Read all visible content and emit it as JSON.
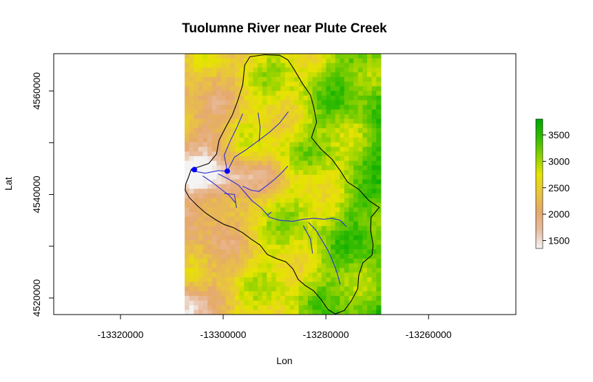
{
  "title": "Tuolumne River near Plute Creek",
  "x_axis": {
    "label": "Lon",
    "range": [
      -13333000,
      -13243000
    ],
    "ticks": [
      {
        "value": -13320000,
        "label": "-13320000"
      },
      {
        "value": -13300000,
        "label": "-13300000"
      },
      {
        "value": -13280000,
        "label": "-13280000"
      },
      {
        "value": -13260000,
        "label": "-13260000"
      }
    ]
  },
  "y_axis": {
    "label": "Lat",
    "range": [
      4516800,
      4567200
    ],
    "ticks": [
      {
        "value": 4520000,
        "label": "4520000",
        "labeled": true
      },
      {
        "value": 4530000,
        "label": "",
        "labeled": false
      },
      {
        "value": 4540000,
        "label": "4540000",
        "labeled": true
      },
      {
        "value": 4550000,
        "label": "",
        "labeled": false
      },
      {
        "value": 4560000,
        "label": "4560000",
        "labeled": true
      }
    ]
  },
  "raster": {
    "lon_range": [
      -13307500,
      -13269300
    ],
    "lat_range": [
      4516800,
      4567200
    ],
    "value_range": [
      1350,
      3800
    ]
  },
  "legend": {
    "placement": "right",
    "min": 1350,
    "max": 3800,
    "ticks": [
      {
        "value": 1500,
        "label": "1500"
      },
      {
        "value": 2000,
        "label": "2000"
      },
      {
        "value": 2500,
        "label": "2500"
      },
      {
        "value": 3000,
        "label": "3000"
      },
      {
        "value": 3500,
        "label": "3500"
      }
    ],
    "colors": [
      "#f4f4f4",
      "#e9bd9f",
      "#e5a96d",
      "#e9c53f",
      "#e6e400",
      "#8cd100",
      "#33bc00",
      "#00a600"
    ]
  },
  "colors": {
    "watershed_boundary": "#000000",
    "streams": "#2b2bd6",
    "gauge_points": "#0000ff"
  },
  "gauge_points": [
    {
      "lon": -13305600,
      "lat": 4544800
    },
    {
      "lon": -13299200,
      "lat": 4544500
    }
  ],
  "watershed_boundary": [
    [
      -13307300,
      4542000
    ],
    [
      -13306800,
      4543200
    ],
    [
      -13306200,
      4544900
    ],
    [
      -13304500,
      4545400
    ],
    [
      -13302800,
      4546000
    ],
    [
      -13301300,
      4547800
    ],
    [
      -13300800,
      4550500
    ],
    [
      -13299600,
      4552800
    ],
    [
      -13298200,
      4555400
    ],
    [
      -13297200,
      4558000
    ],
    [
      -13296200,
      4561200
    ],
    [
      -13295800,
      4565000
    ],
    [
      -13294800,
      4566600
    ],
    [
      -13292000,
      4567000
    ],
    [
      -13289000,
      4566900
    ],
    [
      -13287400,
      4566000
    ],
    [
      -13286200,
      4564200
    ],
    [
      -13284600,
      4561500
    ],
    [
      -13283000,
      4559200
    ],
    [
      -13282400,
      4557000
    ],
    [
      -13281800,
      4554000
    ],
    [
      -13282800,
      4551000
    ],
    [
      -13281000,
      4548800
    ],
    [
      -13278800,
      4546800
    ],
    [
      -13277200,
      4544600
    ],
    [
      -13275800,
      4542400
    ],
    [
      -13273600,
      4541000
    ],
    [
      -13271600,
      4538800
    ],
    [
      -13269600,
      4537500
    ],
    [
      -13271200,
      4535600
    ],
    [
      -13271300,
      4533200
    ],
    [
      -13270800,
      4530200
    ],
    [
      -13271000,
      4528300
    ],
    [
      -13272800,
      4526800
    ],
    [
      -13273600,
      4524400
    ],
    [
      -13273800,
      4521800
    ],
    [
      -13275000,
      4519500
    ],
    [
      -13276400,
      4517600
    ],
    [
      -13278200,
      4516900
    ],
    [
      -13279600,
      4517800
    ],
    [
      -13281000,
      4519800
    ],
    [
      -13282400,
      4521400
    ],
    [
      -13284000,
      4522400
    ],
    [
      -13285400,
      4523600
    ],
    [
      -13286400,
      4525600
    ],
    [
      -13287800,
      4527000
    ],
    [
      -13289600,
      4527600
    ],
    [
      -13291400,
      4528400
    ],
    [
      -13292800,
      4530200
    ],
    [
      -13294600,
      4531400
    ],
    [
      -13296200,
      4532600
    ],
    [
      -13298000,
      4533600
    ],
    [
      -13299800,
      4534200
    ],
    [
      -13301600,
      4535200
    ],
    [
      -13303400,
      4536400
    ],
    [
      -13305000,
      4537800
    ],
    [
      -13306600,
      4539400
    ],
    [
      -13307400,
      4540800
    ],
    [
      -13307300,
      4542000
    ]
  ],
  "streams": [
    [
      [
        -13306200,
        4544600
      ],
      [
        -13303500,
        4544100
      ],
      [
        -13301000,
        4544600
      ],
      [
        -13299200,
        4544500
      ]
    ],
    [
      [
        -13301000,
        4544000
      ],
      [
        -13299000,
        4543000
      ],
      [
        -13297000,
        4541800
      ],
      [
        -13295600,
        4540200
      ],
      [
        -13294400,
        4538800
      ],
      [
        -13292600,
        4537400
      ],
      [
        -13291000,
        4535600
      ],
      [
        -13289000,
        4535000
      ],
      [
        -13286400,
        4534800
      ],
      [
        -13284400,
        4535200
      ],
      [
        -13282400,
        4535400
      ],
      [
        -13280400,
        4535200
      ],
      [
        -13278800,
        4535400
      ],
      [
        -13277200,
        4535000
      ],
      [
        -13276000,
        4533800
      ]
    ],
    [
      [
        -13299200,
        4544500
      ],
      [
        -13299800,
        4547600
      ],
      [
        -13298600,
        4550400
      ],
      [
        -13297400,
        4552800
      ],
      [
        -13296200,
        4555600
      ]
    ],
    [
      [
        -13299200,
        4544500
      ],
      [
        -13297800,
        4547200
      ],
      [
        -13295600,
        4548600
      ],
      [
        -13293400,
        4550200
      ],
      [
        -13291000,
        4552000
      ],
      [
        -13289000,
        4553800
      ],
      [
        -13287300,
        4556000
      ]
    ],
    [
      [
        -13293000,
        4550200
      ],
      [
        -13292800,
        4553000
      ],
      [
        -13293200,
        4555800
      ]
    ],
    [
      [
        -13296200,
        4541600
      ],
      [
        -13294500,
        4540800
      ],
      [
        -13293000,
        4540600
      ],
      [
        -13291400,
        4541800
      ],
      [
        -13290000,
        4542900
      ],
      [
        -13288600,
        4544200
      ],
      [
        -13287400,
        4545500
      ]
    ],
    [
      [
        -13304000,
        4543600
      ],
      [
        -13302200,
        4542400
      ],
      [
        -13300400,
        4541000
      ],
      [
        -13298800,
        4539800
      ],
      [
        -13297600,
        4538400
      ]
    ],
    [
      [
        -13299800,
        4540200
      ],
      [
        -13297800,
        4540000
      ],
      [
        -13297400,
        4537400
      ]
    ],
    [
      [
        -13291400,
        4536000
      ],
      [
        -13290600,
        4536600
      ]
    ],
    [
      [
        -13283400,
        4534600
      ],
      [
        -13282000,
        4533200
      ],
      [
        -13280800,
        4531200
      ],
      [
        -13279600,
        4529200
      ],
      [
        -13278600,
        4527000
      ],
      [
        -13277800,
        4524800
      ],
      [
        -13277200,
        4522600
      ]
    ],
    [
      [
        -13284400,
        4534000
      ],
      [
        -13283000,
        4531400
      ],
      [
        -13282600,
        4528600
      ]
    ]
  ]
}
